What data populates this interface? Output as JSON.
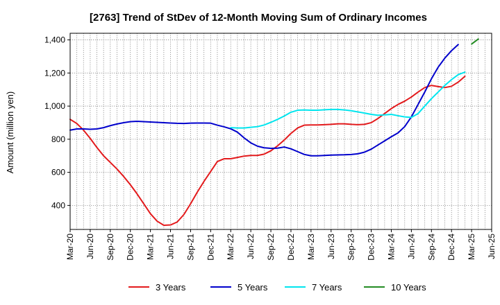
{
  "chart_data": {
    "type": "line",
    "title": "[2763]  Trend of StDev of 12-Month Moving Sum of Ordinary Incomes",
    "xlabel": "",
    "ylabel": "Amount (million yen)",
    "ylim": [
      255,
      1440
    ],
    "yticks": [
      400,
      600,
      800,
      1000,
      1200,
      1400
    ],
    "ytick_labels": [
      "400",
      "600",
      "800",
      "1,000",
      "1,200",
      "1,400"
    ],
    "xticks": [
      "Mar-20",
      "Jun-20",
      "Sep-20",
      "Dec-20",
      "Mar-21",
      "Jun-21",
      "Sep-21",
      "Dec-21",
      "Mar-22",
      "Jun-22",
      "Sep-22",
      "Dec-22",
      "Mar-23",
      "Jun-23",
      "Sep-23",
      "Dec-23",
      "Mar-24",
      "Jun-24",
      "Sep-24",
      "Dec-24",
      "Mar-25",
      "Jun-25"
    ],
    "x_index_range": [
      0,
      63
    ],
    "grid": true,
    "legend_position": "bottom",
    "series": [
      {
        "name": "3 Years",
        "color": "#e31a1c",
        "start_index": 0,
        "values": [
          920,
          895,
          855,
          805,
          750,
          700,
          660,
          620,
          575,
          525,
          470,
          410,
          350,
          305,
          280,
          282,
          300,
          345,
          410,
          480,
          545,
          605,
          665,
          682,
          682,
          690,
          698,
          702,
          702,
          710,
          730,
          760,
          795,
          835,
          868,
          885,
          886,
          886,
          888,
          890,
          893,
          893,
          890,
          888,
          890,
          900,
          925,
          955,
          985,
          1010,
          1030,
          1055,
          1085,
          1112,
          1125,
          1118,
          1112,
          1120,
          1145,
          1180
        ]
      },
      {
        "name": "5 Years",
        "color": "#0000cc",
        "start_index": 0,
        "values": [
          855,
          862,
          862,
          860,
          862,
          870,
          882,
          892,
          900,
          906,
          908,
          906,
          904,
          902,
          900,
          898,
          896,
          895,
          897,
          898,
          898,
          897,
          885,
          875,
          863,
          843,
          808,
          778,
          758,
          748,
          745,
          746,
          753,
          742,
          725,
          708,
          700,
          700,
          702,
          704,
          705,
          706,
          708,
          712,
          722,
          740,
          765,
          790,
          815,
          838,
          876,
          935,
          1010,
          1085,
          1165,
          1235,
          1290,
          1335,
          1372
        ]
      },
      {
        "name": "7 Years",
        "color": "#00e5ee",
        "start_index": 24,
        "values": [
          870,
          868,
          868,
          872,
          876,
          886,
          902,
          920,
          940,
          963,
          975,
          977,
          975,
          975,
          978,
          980,
          980,
          977,
          972,
          965,
          958,
          950,
          945,
          947,
          950,
          942,
          935,
          932,
          955,
          1000,
          1045,
          1085,
          1125,
          1160,
          1190,
          1205
        ]
      },
      {
        "name": "10 Years",
        "color": "#228b22",
        "start_index": 60,
        "values": [
          1375,
          1405
        ]
      }
    ]
  }
}
